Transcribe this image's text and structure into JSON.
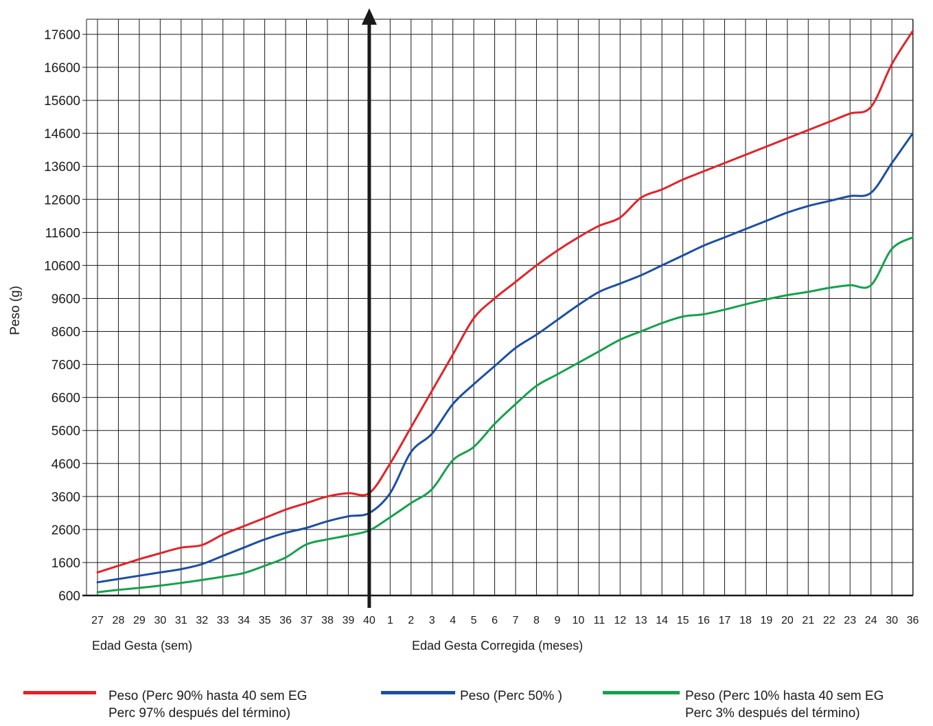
{
  "chart_data": {
    "type": "line",
    "ylabel": "Peso (g)",
    "x_tick_labels": [
      "27",
      "28",
      "29",
      "30",
      "31",
      "32",
      "33",
      "34",
      "35",
      "36",
      "37",
      "38",
      "39",
      "40",
      "1",
      "2",
      "3",
      "4",
      "5",
      "6",
      "7",
      "8",
      "9",
      "10",
      "11",
      "12",
      "13",
      "14",
      "15",
      "16",
      "17",
      "18",
      "19",
      "20",
      "21",
      "22",
      "23",
      "24",
      "30",
      "36"
    ],
    "x_captions": {
      "left": "Edad Gesta (sem)",
      "right": "Edad Gesta Corregida (meses)"
    },
    "y_ticks": [
      600,
      1600,
      2600,
      3600,
      4600,
      5600,
      6600,
      7600,
      8600,
      9600,
      10600,
      11600,
      12600,
      13600,
      14600,
      15600,
      16600,
      17600
    ],
    "ylim": [
      600,
      18200
    ],
    "grid": true,
    "series": [
      {
        "name": "Peso  (Perc 90% hasta 40 sem EG\nPerc 97% después del término)",
        "color": "#e32228",
        "values": [
          1300,
          1500,
          1700,
          1880,
          2050,
          2130,
          2450,
          2700,
          2950,
          3200,
          3400,
          3600,
          3700,
          3700,
          4600,
          5700,
          6800,
          7900,
          9000,
          9600,
          10100,
          10600,
          11050,
          11450,
          11800,
          12050,
          12650,
          12900,
          13200,
          13450,
          13700,
          13950,
          14200,
          14450,
          14700,
          14950,
          15200,
          15400,
          16700,
          17700
        ]
      },
      {
        "name": "Peso  (Perc 50% )",
        "color": "#1b4ea3",
        "values": [
          1000,
          1100,
          1200,
          1300,
          1400,
          1550,
          1800,
          2050,
          2300,
          2500,
          2650,
          2850,
          3000,
          3100,
          3700,
          4950,
          5500,
          6400,
          7000,
          7550,
          8100,
          8500,
          8950,
          9400,
          9800,
          10050,
          10300,
          10600,
          10900,
          11200,
          11450,
          11700,
          11950,
          12200,
          12400,
          12550,
          12700,
          12800,
          13700,
          14600
        ]
      },
      {
        "name": "Peso  (Perc 10% hasta 40 sem EG\nPerc 3% después del término)",
        "color": "#14a14b",
        "values": [
          700,
          770,
          830,
          900,
          980,
          1070,
          1170,
          1280,
          1500,
          1750,
          2150,
          2300,
          2420,
          2570,
          2970,
          3400,
          3820,
          4700,
          5100,
          5800,
          6400,
          6950,
          7300,
          7650,
          8000,
          8350,
          8600,
          8850,
          9050,
          9120,
          9260,
          9420,
          9570,
          9700,
          9800,
          9920,
          10000,
          10000,
          11100,
          11450
        ]
      }
    ]
  }
}
